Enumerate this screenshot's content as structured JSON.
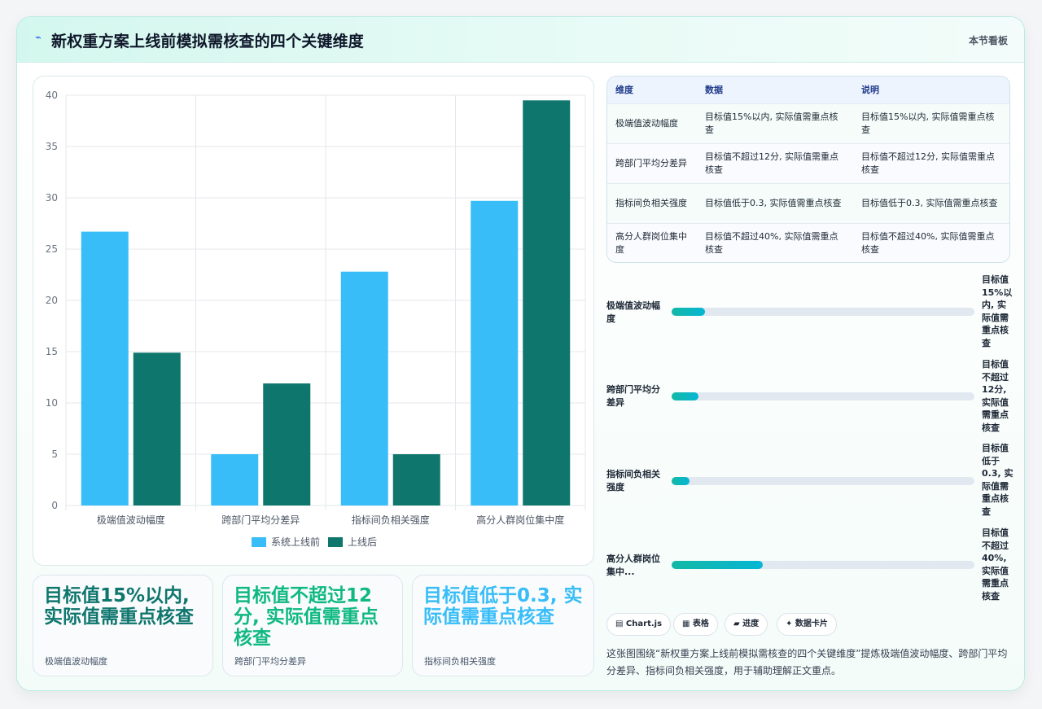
{
  "header": {
    "icon": "chart-bolt-icon",
    "title": "新权重方案上线前模拟需核查的四个关键维度",
    "right_label": "本节看板"
  },
  "chart_data": {
    "type": "bar",
    "categories": [
      "极端值波动幅度",
      "跨部门平均分差异",
      "指标间负相关强度",
      "高分人群岗位集中度"
    ],
    "series": [
      {
        "name": "系统上线前",
        "color": "#38bdf8",
        "values": [
          26.7,
          5,
          22.8,
          29.7
        ]
      },
      {
        "name": "上线后",
        "color": "#0f766e",
        "values": [
          14.9,
          11.9,
          5,
          39.5
        ]
      }
    ],
    "ylim": [
      0,
      40
    ],
    "yticks": [
      0,
      5,
      10,
      15,
      20,
      25,
      30,
      35,
      40
    ],
    "grid": true,
    "legend_position": "bottom"
  },
  "kpis": [
    {
      "value": "目标值15%以内, 实际值需重点核查",
      "label": "极端值波动幅度",
      "color": "#0f766e"
    },
    {
      "value": "目标值不超过12分, 实际值需重点核查",
      "label": "跨部门平均分差异",
      "color": "#10b981"
    },
    {
      "value": "目标值低于0.3, 实际值需重点核查",
      "label": "指标间负相关强度",
      "color": "#38bdf8"
    }
  ],
  "table": {
    "headers": [
      "维度",
      "数据",
      "说明"
    ],
    "rows": [
      [
        "极端值波动幅度",
        "目标值15%以内, 实际值需重点核查",
        "目标值15%以内, 实际值需重点核查"
      ],
      [
        "跨部门平均分差异",
        "目标值不超过12分, 实际值需重点核查",
        "目标值不超过12分, 实际值需重点核查"
      ],
      [
        "指标间负相关强度",
        "目标值低于0.3, 实际值需重点核查",
        "目标值低于0.3, 实际值需重点核查"
      ],
      [
        "高分人群岗位集中度",
        "目标值不超过40%, 实际值需重点核查",
        "目标值不超过40%, 实际值需重点核查"
      ]
    ]
  },
  "progress": [
    {
      "label": "极端值波动幅度",
      "value": "目标值15%以内, 实际值需重点核查",
      "fraction": 0.11
    },
    {
      "label": "跨部门平均分差异",
      "value": "目标值不超过12分, 实际值需重点核查",
      "fraction": 0.09
    },
    {
      "label": "指标间负相关强度",
      "value": "目标值低于0.3, 实际值需重点核查",
      "fraction": 0.06
    },
    {
      "label": "高分人群岗位集中...",
      "value": "目标值不超过40%, 实际值需重点核查",
      "fraction": 0.3
    }
  ],
  "chips": [
    {
      "icon": "chart-icon",
      "label": "▤ Chart.js"
    },
    {
      "icon": "table-icon",
      "label": "▦ 表格"
    },
    {
      "icon": "progress-icon",
      "label": "▰ 进度"
    },
    {
      "icon": "sparkle-icon",
      "label": "✦ 数据卡片"
    }
  ],
  "description": "这张图围绕“新权重方案上线前模拟需核查的四个关键维度”提炼极端值波动幅度、跨部门平均分差异、指标间负相关强度，用于辅助理解正文重点。"
}
